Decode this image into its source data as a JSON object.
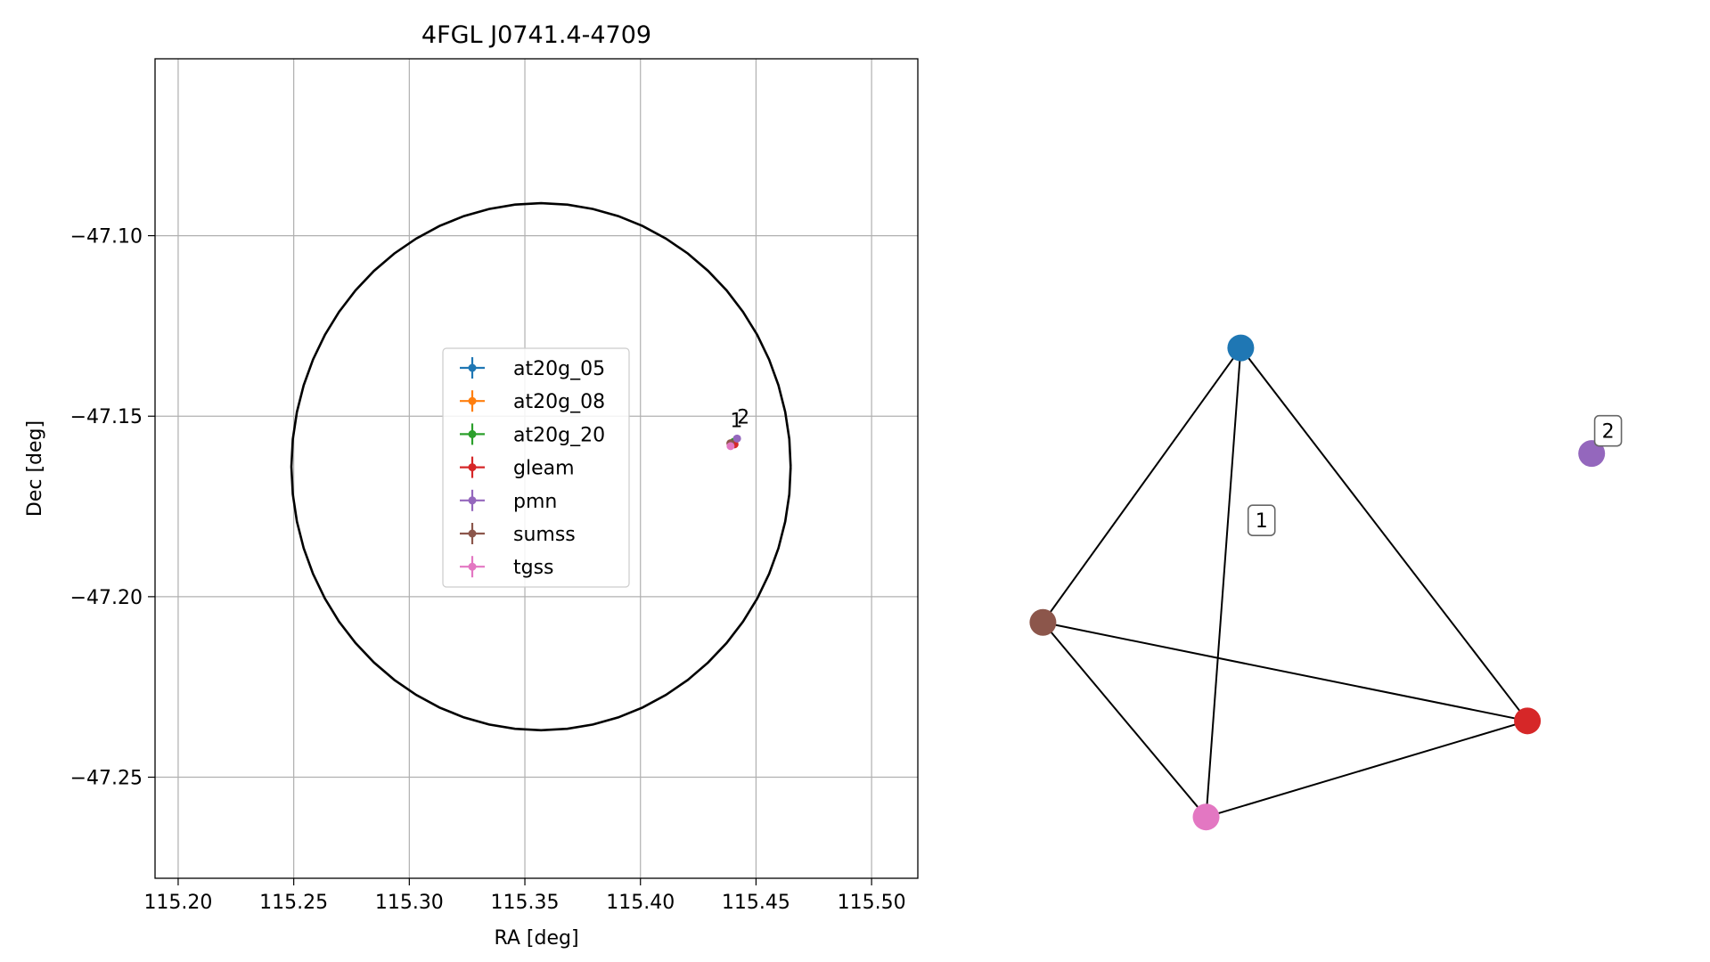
{
  "chart_data": [
    {
      "type": "scatter",
      "title": "4FGL J0741.4-4709",
      "xlabel": "RA [deg]",
      "ylabel": "Dec [deg]",
      "xlim": [
        115.19,
        115.52
      ],
      "ylim": [
        -47.278,
        -47.051
      ],
      "xticks": [
        115.2,
        115.25,
        115.3,
        115.35,
        115.4,
        115.45,
        115.5
      ],
      "xtick_labels": [
        "115.20",
        "115.25",
        "115.30",
        "115.35",
        "115.40",
        "115.45",
        "115.50"
      ],
      "yticks": [
        -47.1,
        -47.15,
        -47.2,
        -47.25
      ],
      "ytick_labels": [
        "−47.10",
        "−47.15",
        "−47.20",
        "−47.25"
      ],
      "grid": true,
      "legend_position": "center",
      "ellipse": {
        "center": [
          115.357,
          -47.164
        ],
        "semi_axis_ra": 0.108,
        "semi_axis_dec": 0.073,
        "color": "#000000"
      },
      "series": [
        {
          "name": "at20g_05",
          "color": "#1f77b4",
          "points": [
            [
              115.4404,
              -47.1571
            ]
          ]
        },
        {
          "name": "at20g_08",
          "color": "#ff7f0e",
          "points": [
            [
              115.4404,
              -47.1571
            ]
          ]
        },
        {
          "name": "at20g_20",
          "color": "#2ca02c",
          "points": [
            [
              115.4404,
              -47.1571
            ]
          ]
        },
        {
          "name": "gleam",
          "color": "#d62728",
          "points": [
            [
              115.4407,
              -47.1578
            ]
          ]
        },
        {
          "name": "pmn",
          "color": "#9467bd",
          "points": [
            [
              115.4418,
              -47.1562
            ]
          ]
        },
        {
          "name": "sumss",
          "color": "#8c564b",
          "points": [
            [
              115.4389,
              -47.1575
            ]
          ]
        },
        {
          "name": "tgss",
          "color": "#e377c2",
          "points": [
            [
              115.439,
              -47.1583
            ]
          ]
        }
      ],
      "annotations": [
        {
          "text": "1",
          "x": 115.4415,
          "y": -47.153
        },
        {
          "text": "2",
          "x": 115.4445,
          "y": -47.152
        }
      ]
    },
    {
      "type": "network",
      "nodes": [
        {
          "id": "at20g_05",
          "color": "#1f77b4",
          "x": 0.357,
          "y": 0.829
        },
        {
          "id": "gleam",
          "color": "#d62728",
          "x": 0.812,
          "y": 0.204
        },
        {
          "id": "pmn",
          "color": "#9467bd",
          "x": 0.914,
          "y": 0.652
        },
        {
          "id": "sumss",
          "color": "#8c564b",
          "x": 0.043,
          "y": 0.369
        },
        {
          "id": "tgss",
          "color": "#e377c2",
          "x": 0.302,
          "y": 0.043
        }
      ],
      "edges": [
        [
          "at20g_05",
          "sumss"
        ],
        [
          "at20g_05",
          "gleam"
        ],
        [
          "at20g_05",
          "tgss"
        ],
        [
          "sumss",
          "tgss"
        ],
        [
          "sumss",
          "gleam"
        ],
        [
          "tgss",
          "gleam"
        ]
      ],
      "group_labels": [
        {
          "text": "1",
          "x": 0.39,
          "y": 0.54
        },
        {
          "text": "2",
          "x": 0.94,
          "y": 0.69
        }
      ]
    }
  ]
}
